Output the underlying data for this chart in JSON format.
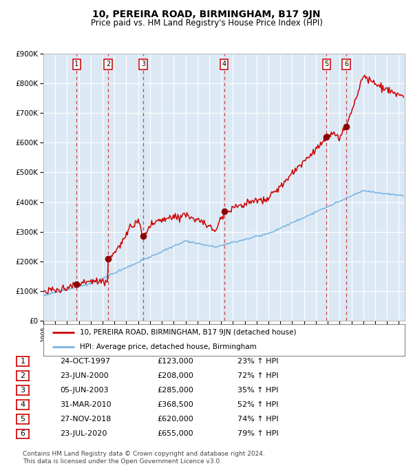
{
  "title": "10, PEREIRA ROAD, BIRMINGHAM, B17 9JN",
  "subtitle": "Price paid vs. HM Land Registry's House Price Index (HPI)",
  "background_color": "#dce9f5",
  "hpi_line_color": "#7ab3e0",
  "price_line_color": "#cc0000",
  "marker_color": "#8b0000",
  "grid_color": "#ffffff",
  "dashed_line_color": "#cc4444",
  "sale_dates_x": [
    1997.81,
    2000.47,
    2003.42,
    2010.25,
    2018.9,
    2020.56
  ],
  "sale_prices": [
    123000,
    208000,
    285000,
    368500,
    620000,
    655000
  ],
  "sale_labels": [
    "1",
    "2",
    "3",
    "4",
    "5",
    "6"
  ],
  "legend_label_red": "10, PEREIRA ROAD, BIRMINGHAM, B17 9JN (detached house)",
  "legend_label_blue": "HPI: Average price, detached house, Birmingham",
  "table_rows": [
    [
      "1",
      "24-OCT-1997",
      "£123,000",
      "23% ↑ HPI"
    ],
    [
      "2",
      "23-JUN-2000",
      "£208,000",
      "72% ↑ HPI"
    ],
    [
      "3",
      "05-JUN-2003",
      "£285,000",
      "35% ↑ HPI"
    ],
    [
      "4",
      "31-MAR-2010",
      "£368,500",
      "52% ↑ HPI"
    ],
    [
      "5",
      "27-NOV-2018",
      "£620,000",
      "74% ↑ HPI"
    ],
    [
      "6",
      "23-JUL-2020",
      "£655,000",
      "79% ↑ HPI"
    ]
  ],
  "footnote": "Contains HM Land Registry data © Crown copyright and database right 2024.\nThis data is licensed under the Open Government Licence v3.0.",
  "xmin": 1995.0,
  "xmax": 2025.5,
  "ylim": [
    0,
    900000
  ],
  "yticks": [
    0,
    100000,
    200000,
    300000,
    400000,
    500000,
    600000,
    700000,
    800000,
    900000
  ],
  "ytick_labels": [
    "£0",
    "£100K",
    "£200K",
    "£300K",
    "£400K",
    "£500K",
    "£600K",
    "£700K",
    "£800K",
    "£900K"
  ]
}
